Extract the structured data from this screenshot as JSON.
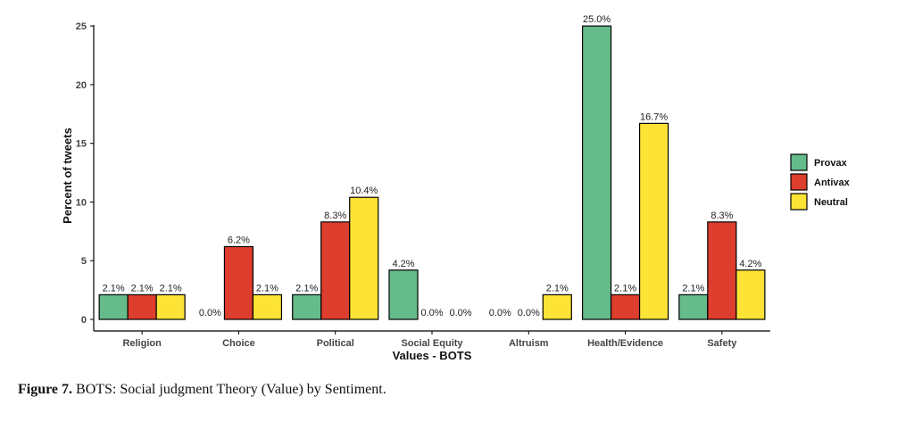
{
  "chart_data": {
    "type": "bar",
    "xlabel": "Values - BOTS",
    "ylabel": "Percent of tweets",
    "ylim": [
      0,
      26
    ],
    "yticks": [
      0,
      5,
      10,
      15,
      20,
      25
    ],
    "grid": false,
    "legend_position": "right",
    "categories": [
      "Religion",
      "Choice",
      "Political",
      "Social Equity",
      "Altruism",
      "Health/Evidence",
      "Safety"
    ],
    "series": [
      {
        "name": "Provax",
        "color": "#66bb8a",
        "values": [
          2.1,
          0.0,
          2.1,
          4.2,
          0.0,
          25.0,
          2.1
        ],
        "labels": [
          "2.1%",
          "0.0%",
          "2.1%",
          "4.2%",
          "0.0%",
          "25.0%",
          "2.1%"
        ]
      },
      {
        "name": "Antivax",
        "color": "#dd3e2d",
        "values": [
          2.1,
          6.2,
          8.3,
          0.0,
          0.0,
          2.1,
          8.3
        ],
        "labels": [
          "2.1%",
          "6.2%",
          "8.3%",
          "0.0%",
          "0.0%",
          "2.1%",
          "8.3%"
        ]
      },
      {
        "name": "Neutral",
        "color": "#fce336",
        "values": [
          2.1,
          2.1,
          10.4,
          0.0,
          2.1,
          16.7,
          4.2
        ],
        "labels": [
          "2.1%",
          "2.1%",
          "10.4%",
          "0.0%",
          "2.1%",
          "16.7%",
          "4.2%"
        ]
      }
    ]
  },
  "caption": {
    "label": "Figure 7.",
    "text": " BOTS: Social judgment Theory (Value) by Sentiment."
  }
}
